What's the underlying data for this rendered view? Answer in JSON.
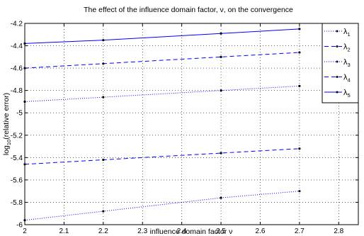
{
  "chart_data": {
    "type": "line",
    "title": "The effect of the influence domain factor, ν,  on the convergence",
    "xlabel": "influence domain factor ν",
    "ylabel_base": "log",
    "ylabel_sub": "10",
    "ylabel_rest": "(relative error)",
    "xlim": [
      2,
      2.85
    ],
    "ylim": [
      -6,
      -4.2
    ],
    "xticks": [
      "2",
      "2.1",
      "2.2",
      "2.3",
      "2.4",
      "2.5",
      "2.6",
      "2.7",
      "2.8"
    ],
    "yticks": [
      "-6",
      "-5.8",
      "-5.6",
      "-5.4",
      "-5.2",
      "-5",
      "-4.8",
      "-4.6",
      "-4.4",
      "-4.2"
    ],
    "grid": true,
    "legend_position": "top-right",
    "series": [
      {
        "name": "λ",
        "sub": "1",
        "color": "#0000ff",
        "dash": "dotted",
        "x": [
          2,
          2.2,
          2.5,
          2.7
        ],
        "y": [
          -4.9,
          -4.86,
          -4.8,
          -4.76
        ]
      },
      {
        "name": "λ",
        "sub": "2",
        "color": "#0000ff",
        "dash": "dashed",
        "x": [
          2,
          2.2,
          2.5,
          2.7
        ],
        "y": [
          -5.46,
          -5.42,
          -5.36,
          -5.32
        ]
      },
      {
        "name": "λ",
        "sub": "3",
        "color": "#0000ff",
        "dash": "dotted",
        "x": [
          2,
          2.2,
          2.5,
          2.7
        ],
        "y": [
          -5.96,
          -5.88,
          -5.76,
          -5.7
        ]
      },
      {
        "name": "λ",
        "sub": "4",
        "color": "#0000ff",
        "dash": "dashed",
        "x": [
          2,
          2.2,
          2.5,
          2.7
        ],
        "y": [
          -4.6,
          -4.56,
          -4.5,
          -4.46
        ]
      },
      {
        "name": "λ",
        "sub": "5",
        "color": "#0000ff",
        "dash": "solid",
        "x": [
          2,
          2.2,
          2.5,
          2.7
        ],
        "y": [
          -4.38,
          -4.35,
          -4.29,
          -4.25
        ]
      }
    ]
  }
}
